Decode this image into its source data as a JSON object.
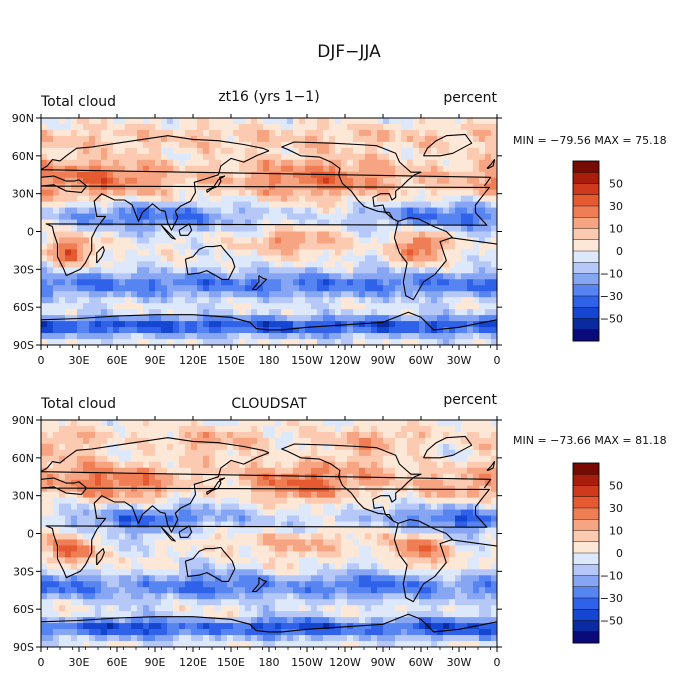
{
  "figure": {
    "title": "DJF−JJA"
  },
  "colors": {
    "levels": [
      "#0a0a7a",
      "#0a2aa0",
      "#1446d2",
      "#2f62e8",
      "#5684f0",
      "#86a6f4",
      "#b6c8f8",
      "#dde8fb",
      "#fde8d8",
      "#fccab0",
      "#f6a482",
      "#f07e55",
      "#e65a32",
      "#cf3a1c",
      "#a81e0a",
      "#780a04"
    ],
    "coast": "#000000"
  },
  "panels": [
    {
      "left_title": "Total cloud",
      "center_title": "zt16 (yrs 1−1)",
      "right_title": "percent",
      "minmax": "MIN = −79.56 MAX =  75.18",
      "colorbar_labels": [
        "50",
        "30",
        "10",
        "0",
        "−10",
        "−30",
        "−50"
      ]
    },
    {
      "left_title": "Total cloud",
      "center_title": "CLOUDSAT",
      "right_title": "percent",
      "minmax": "MIN = −73.66 MAX =  81.18",
      "colorbar_labels": [
        "50",
        "30",
        "10",
        "0",
        "−10",
        "−30",
        "−50"
      ]
    }
  ],
  "axes": {
    "x_ticks": [
      "0",
      "30E",
      "60E",
      "90E",
      "120E",
      "150E",
      "180",
      "150W",
      "120W",
      "90W",
      "60W",
      "30W",
      "0"
    ],
    "y_ticks": [
      "90N",
      "60N",
      "30N",
      "0",
      "30S",
      "60S",
      "90S"
    ]
  }
}
